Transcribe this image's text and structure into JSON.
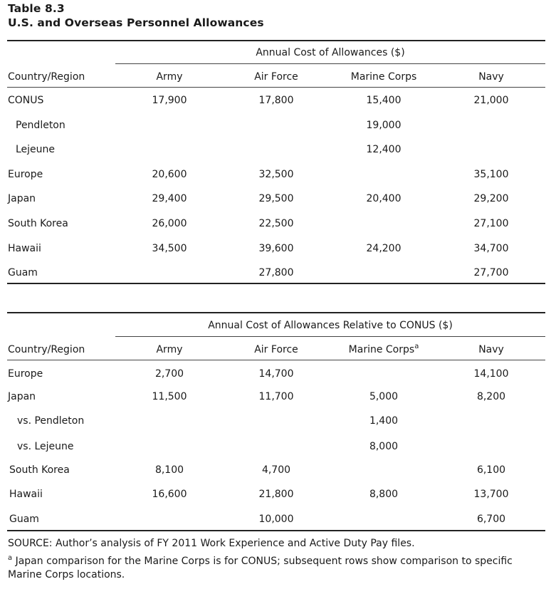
{
  "table_label": "Table 8.3",
  "table_title": "U.S. and Overseas Personnel Allowances",
  "panel1": {
    "spanner": "Annual Cost of Allowances ($)",
    "columns": [
      "Country/Region",
      "Army",
      "Air Force",
      "Marine Corps",
      "Navy"
    ],
    "rows": [
      {
        "label": "CONUS",
        "army": "17,900",
        "air_force": "17,800",
        "marine_corps": "15,400",
        "navy": "21,000"
      },
      {
        "label": "Pendleton",
        "army": "",
        "air_force": "",
        "marine_corps": "19,000",
        "navy": ""
      },
      {
        "label": "Lejeune",
        "army": "",
        "air_force": "",
        "marine_corps": "12,400",
        "navy": ""
      },
      {
        "label": "Europe",
        "army": "20,600",
        "air_force": "32,500",
        "marine_corps": "",
        "navy": "35,100"
      },
      {
        "label": "Japan",
        "army": "29,400",
        "air_force": "29,500",
        "marine_corps": "20,400",
        "navy": "29,200"
      },
      {
        "label": "South Korea",
        "army": "26,000",
        "air_force": "22,500",
        "marine_corps": "",
        "navy": "27,100"
      },
      {
        "label": "Hawaii",
        "army": "34,500",
        "air_force": "39,600",
        "marine_corps": "24,200",
        "navy": "34,700"
      },
      {
        "label": "Guam",
        "army": "",
        "air_force": "27,800",
        "marine_corps": "",
        "navy": "27,700"
      }
    ]
  },
  "panel2": {
    "spanner": "Annual Cost of Allowances Relative to CONUS ($)",
    "columns": [
      "Country/Region",
      "Army",
      "Air Force",
      "Marine Corps",
      "Navy"
    ],
    "marine_corps_note_mark": "a",
    "rows": [
      {
        "label": "Europe",
        "army": "2,700",
        "air_force": "14,700",
        "marine_corps": "",
        "navy": "14,100"
      },
      {
        "label": "Japan",
        "army": "11,500",
        "air_force": "11,700",
        "marine_corps": "5,000",
        "navy": "8,200"
      },
      {
        "label": "vs. Pendleton",
        "army": "",
        "air_force": "",
        "marine_corps": "1,400",
        "navy": ""
      },
      {
        "label": "vs. Lejeune",
        "army": "",
        "air_force": "",
        "marine_corps": "8,000",
        "navy": ""
      },
      {
        "label": "South Korea",
        "army": "8,100",
        "air_force": "4,700",
        "marine_corps": "",
        "navy": "6,100"
      },
      {
        "label": "Hawaii",
        "army": "16,600",
        "air_force": "21,800",
        "marine_corps": "8,800",
        "navy": "13,700"
      },
      {
        "label": "Guam",
        "army": "",
        "air_force": "10,000",
        "marine_corps": "",
        "navy": "6,700"
      }
    ]
  },
  "source": "SOURCE: Author’s analysis of FY 2011 Work Experience and Active Duty Pay files.",
  "footnote_mark": "a",
  "footnote_text": " Japan comparison for the Marine Corps is for CONUS; subsequent rows show comparison to specific Marine Corps locations."
}
